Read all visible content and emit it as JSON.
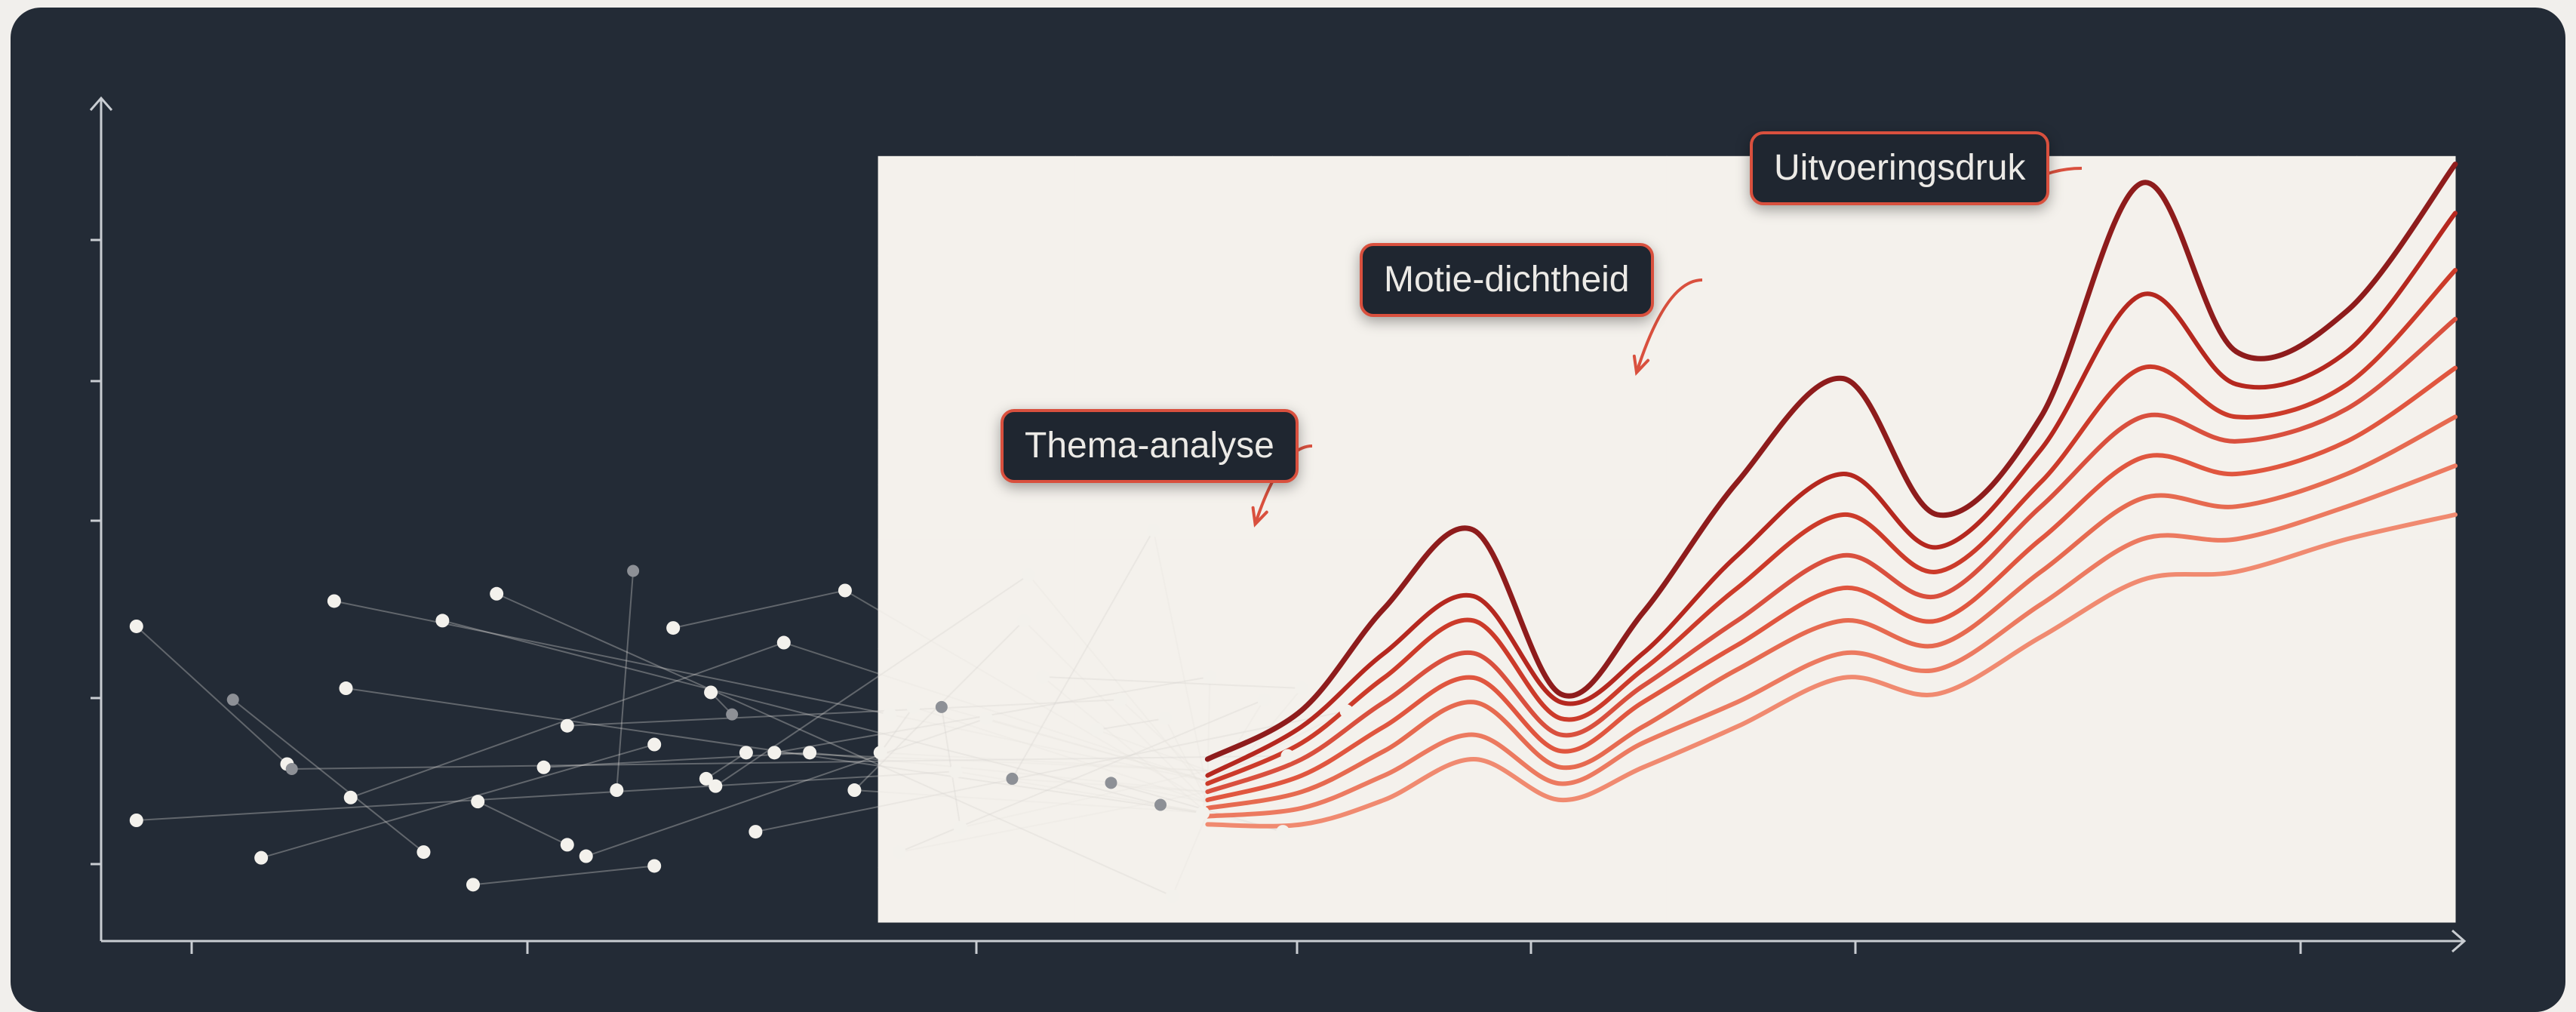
{
  "colors": {
    "background": "#232b36",
    "axis": "#c9cdd2",
    "annotation_border": "#d9503e",
    "line_dark": "#8e1c1c",
    "line_mid": "#d9503e",
    "line_light": "#f08a70",
    "dot": "#f3f1ec"
  },
  "chart_data": {
    "type": "line",
    "title": "",
    "xlabel": "",
    "ylabel": "",
    "grid": false,
    "axis_ticks_labeled": false,
    "x_range": [
      0,
      100
    ],
    "y_range": [
      0,
      100
    ],
    "annotations": [
      {
        "label": "Thema-analyse",
        "points_to_x": 49.6,
        "points_to_y": 48.1
      },
      {
        "label": "Motie-dichtheid",
        "points_to_x": 65.8,
        "points_to_y": 66.7
      },
      {
        "label": "Uitvoeringsdruk",
        "points_to_x": 82.4,
        "points_to_y": 90.7
      }
    ],
    "heatmap": {
      "x_start": 33.0,
      "x_end": 100,
      "y_start": 0,
      "y_end": 94.0,
      "columns": 16,
      "rows": 14,
      "cells": [
        [
          0,
          0,
          0,
          0,
          0,
          0,
          0,
          0,
          0,
          0,
          0,
          0,
          0,
          0,
          0,
          0
        ],
        [
          0,
          0,
          0,
          0,
          0,
          0,
          0,
          0,
          0,
          0,
          0,
          0,
          0,
          0,
          0,
          0
        ],
        [
          0,
          0,
          0,
          0,
          0,
          0,
          0,
          0,
          0,
          0,
          0,
          0,
          0,
          0,
          0,
          0
        ],
        [
          0,
          0,
          0,
          0,
          0,
          0,
          0,
          0,
          0,
          0,
          0,
          0,
          0,
          0,
          0,
          0
        ],
        [
          0,
          0,
          0,
          0,
          0,
          0,
          0,
          0,
          0,
          0,
          0,
          0,
          0,
          0,
          0,
          0
        ],
        [
          0,
          0,
          0,
          0,
          0,
          0,
          0,
          0,
          0,
          0,
          0,
          0,
          0,
          0,
          0,
          0
        ],
        [
          0,
          0,
          0,
          0,
          0,
          0,
          0,
          0,
          0,
          0,
          0,
          0,
          0,
          0,
          0,
          0
        ],
        [
          0,
          0,
          0,
          0,
          0,
          0,
          0,
          0,
          0,
          0,
          0,
          0,
          0,
          0,
          0,
          0
        ],
        [
          0,
          0,
          0,
          0,
          0,
          0,
          0,
          0,
          0,
          0,
          0,
          0,
          0,
          0,
          0,
          0
        ],
        [
          0,
          0,
          0,
          0,
          0,
          0,
          0,
          0,
          0,
          0,
          0,
          0,
          0,
          0,
          0,
          0
        ],
        [
          0,
          0,
          0,
          0,
          0,
          0,
          0,
          0,
          0,
          0,
          0,
          0,
          0,
          0,
          0,
          0
        ],
        [
          0,
          0,
          0,
          0,
          0,
          0,
          0,
          0,
          0,
          0,
          0,
          0,
          0,
          0,
          0,
          0
        ],
        [
          0,
          0,
          0,
          0,
          0,
          0,
          0,
          0,
          0,
          0,
          0,
          0,
          0,
          0,
          0,
          0
        ],
        [
          0,
          0,
          0,
          0,
          0,
          0,
          0,
          0,
          0,
          0,
          0,
          0,
          0,
          0,
          0,
          0
        ]
      ]
    },
    "scatter": [
      [
        1.5,
        36.3
      ],
      [
        1.5,
        12.5
      ],
      [
        6.8,
        7.9
      ],
      [
        7.9,
        19.4
      ],
      [
        9.9,
        39.4
      ],
      [
        10.6,
        15.3
      ],
      [
        10.4,
        28.7
      ],
      [
        13.7,
        8.6
      ],
      [
        14.5,
        37.0
      ],
      [
        15.8,
        4.6
      ],
      [
        16.0,
        14.8
      ],
      [
        16.8,
        40.3
      ],
      [
        18.8,
        19.0
      ],
      [
        19.8,
        9.5
      ],
      [
        19.8,
        24.1
      ],
      [
        20.6,
        8.1
      ],
      [
        21.9,
        16.2
      ],
      [
        23.5,
        21.8
      ],
      [
        23.5,
        6.9
      ],
      [
        24.3,
        36.1
      ],
      [
        25.7,
        17.6
      ],
      [
        25.9,
        28.2
      ],
      [
        26.1,
        16.7
      ],
      [
        27.4,
        20.8
      ],
      [
        27.8,
        11.1
      ],
      [
        28.6,
        20.8
      ],
      [
        29.0,
        34.3
      ],
      [
        30.1,
        20.8
      ],
      [
        31.6,
        40.7
      ],
      [
        32.0,
        16.2
      ],
      [
        33.1,
        20.8
      ],
      [
        33.5,
        25.5
      ],
      [
        33.9,
        8.6
      ],
      [
        34.5,
        26.4
      ],
      [
        36.3,
        18.5
      ],
      [
        36.5,
        11.6
      ],
      [
        37.6,
        25.0
      ],
      [
        39.4,
        42.6
      ],
      [
        39.2,
        37.0
      ],
      [
        40.0,
        30.1
      ],
      [
        42.3,
        23.6
      ],
      [
        43.3,
        27.3
      ],
      [
        44.7,
        48.1
      ],
      [
        45.2,
        25.0
      ],
      [
        45.5,
        3.2
      ],
      [
        46.8,
        13.4
      ],
      [
        47.1,
        30.1
      ],
      [
        49.4,
        27.3
      ],
      [
        51.0,
        28.7
      ],
      [
        50.2,
        11.1
      ],
      [
        50.4,
        20.4
      ],
      [
        52.9,
        25.9
      ],
      [
        5.6,
        27.3
      ],
      [
        8.1,
        18.8
      ],
      [
        26.8,
        25.5
      ],
      [
        22.6,
        43.1
      ],
      [
        35.7,
        26.4
      ],
      [
        38.7,
        17.6
      ],
      [
        42.9,
        17.1
      ],
      [
        45.0,
        14.4
      ]
    ],
    "series": [
      {
        "x": [
          47,
          51,
          54.5,
          58.3,
          62,
          65.5,
          69.5,
          74,
          78,
          82.4,
          86.7,
          90.7,
          95.4,
          100
        ],
        "y": [
          20.0,
          26.0,
          38.5,
          48.1,
          28.0,
          38.0,
          54.0,
          66.7,
          50.0,
          62.0,
          90.7,
          70.0,
          75.0,
          93.0
        ]
      },
      {
        "x": [
          47,
          51,
          54.5,
          58.3,
          62,
          65.5,
          69.5,
          74,
          78,
          82.4,
          86.7,
          90.7,
          95.4,
          100
        ],
        "y": [
          18.0,
          24.0,
          33.0,
          40.0,
          27.0,
          33.0,
          45.0,
          55.0,
          46.0,
          58.0,
          77.0,
          66.0,
          70.0,
          87.0
        ]
      },
      {
        "x": [
          47,
          51,
          54.5,
          58.3,
          62,
          65.5,
          69.5,
          74,
          78,
          82.4,
          86.7,
          90.7,
          95.4,
          100
        ],
        "y": [
          17.0,
          22.0,
          30.0,
          37.0,
          25.0,
          31.0,
          41.0,
          50.0,
          43.0,
          54.0,
          68.0,
          62.0,
          66.0,
          80.0
        ]
      },
      {
        "x": [
          47,
          51,
          54.5,
          58.3,
          62,
          65.5,
          69.5,
          74,
          78,
          82.4,
          86.7,
          90.7,
          95.4,
          100
        ],
        "y": [
          16.0,
          20.0,
          27.0,
          33.0,
          23.0,
          29.0,
          37.0,
          45.0,
          40.0,
          51.0,
          62.0,
          59.0,
          63.0,
          74.0
        ]
      },
      {
        "x": [
          47,
          51,
          54.5,
          58.3,
          62,
          65.5,
          69.5,
          74,
          78,
          82.4,
          86.7,
          90.7,
          95.4,
          100
        ],
        "y": [
          15.0,
          18.0,
          24.0,
          30.0,
          21.0,
          27.0,
          34.0,
          41.0,
          37.0,
          47.0,
          57.0,
          55.0,
          59.0,
          68.0
        ]
      },
      {
        "x": [
          47,
          51,
          54.5,
          58.3,
          62,
          65.5,
          69.5,
          74,
          78,
          82.4,
          86.7,
          90.7,
          95.4,
          100
        ],
        "y": [
          14.0,
          16.0,
          21.0,
          27.0,
          19.0,
          24.0,
          31.0,
          37.0,
          34.0,
          43.0,
          52.0,
          51.0,
          55.0,
          62.0
        ]
      },
      {
        "x": [
          47,
          51,
          54.5,
          58.3,
          62,
          65.5,
          69.5,
          74,
          78,
          82.4,
          86.7,
          90.7,
          95.4,
          100
        ],
        "y": [
          13.0,
          14.0,
          18.0,
          23.0,
          17.0,
          22.0,
          27.0,
          33.0,
          31.0,
          39.0,
          47.0,
          47.0,
          51.0,
          56.0
        ]
      },
      {
        "x": [
          47,
          51,
          54.5,
          58.3,
          62,
          65.5,
          69.5,
          74,
          78,
          82.4,
          86.7,
          90.7,
          95.4,
          100
        ],
        "y": [
          12.0,
          12.0,
          15.0,
          20.0,
          15.0,
          19.0,
          24.0,
          30.0,
          28.0,
          35.0,
          42.0,
          43.0,
          47.0,
          50.0
        ]
      }
    ]
  }
}
